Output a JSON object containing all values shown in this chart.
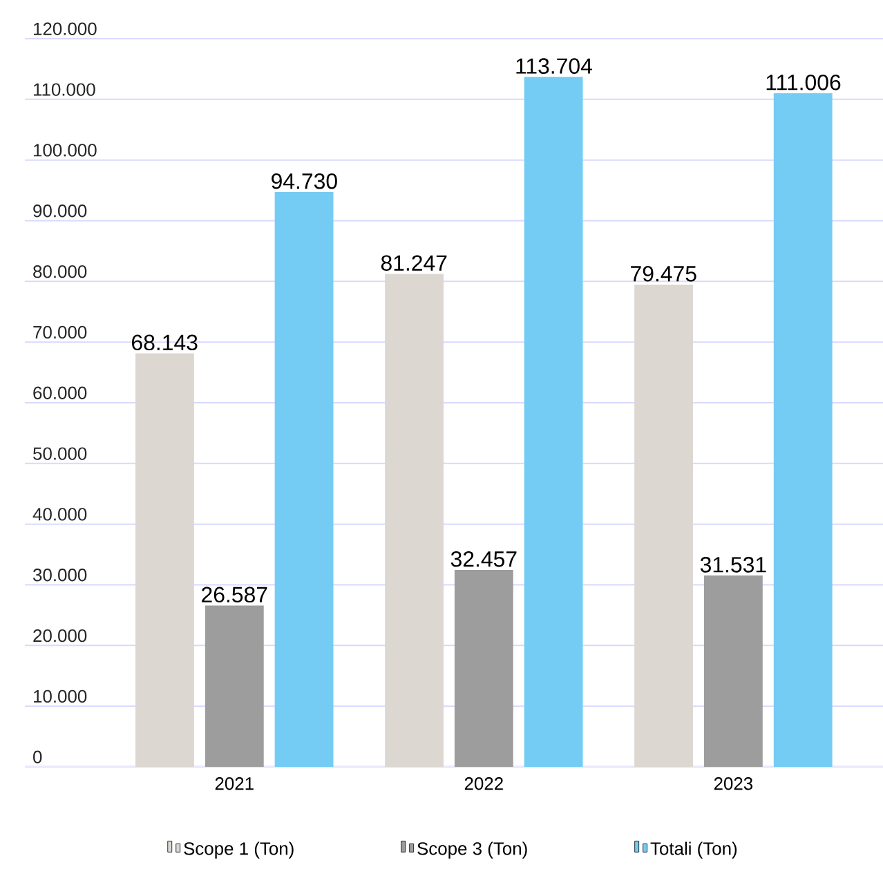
{
  "chart_data": {
    "type": "bar",
    "categories": [
      "2021",
      "2022",
      "2023"
    ],
    "series": [
      {
        "name": "Scope 1 (Ton)",
        "color": "#dcd8d1",
        "values": [
          68143,
          81247,
          79475
        ],
        "value_labels": [
          "68.143",
          "81.247",
          "79.475"
        ]
      },
      {
        "name": "Scope 3 (Ton)",
        "color": "#9d9d9d",
        "values": [
          26587,
          32457,
          31531
        ],
        "value_labels": [
          "26.587",
          "32.457",
          "31.531"
        ]
      },
      {
        "name": "Totali (Ton)",
        "color": "#74ccf4",
        "values": [
          94730,
          113704,
          111006
        ],
        "value_labels": [
          "94.730",
          "113.704",
          "111.006"
        ]
      }
    ],
    "ylim": [
      0,
      120000
    ],
    "yticks": [
      {
        "value": 0,
        "label": "0"
      },
      {
        "value": 10000,
        "label": "10.000"
      },
      {
        "value": 20000,
        "label": "20.000"
      },
      {
        "value": 30000,
        "label": "30.000"
      },
      {
        "value": 40000,
        "label": "40.000"
      },
      {
        "value": 50000,
        "label": "50.000"
      },
      {
        "value": 60000,
        "label": "60.000"
      },
      {
        "value": 70000,
        "label": "70.000"
      },
      {
        "value": 80000,
        "label": "80.000"
      },
      {
        "value": 90000,
        "label": "90.000"
      },
      {
        "value": 100000,
        "label": "100.000"
      },
      {
        "value": 110000,
        "label": "110.000"
      },
      {
        "value": 120000,
        "label": "120.000"
      }
    ],
    "grid": "y",
    "legend": "bottom"
  }
}
